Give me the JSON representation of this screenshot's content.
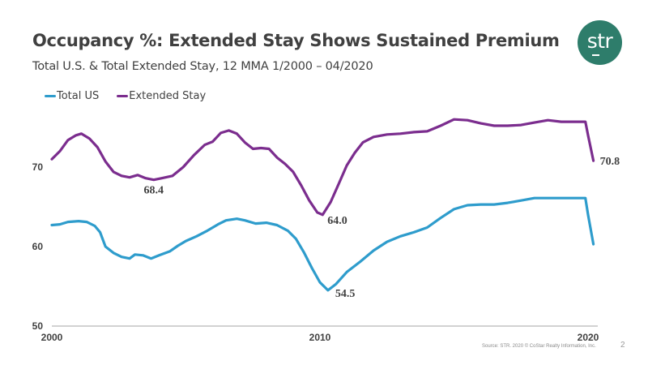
{
  "slide": {
    "title": "Occupancy %: Extended Stay Shows Sustained Premium",
    "subtitle": "Total U.S. & Total Extended Stay, 12 MMA  1/2000  –  04/2020",
    "logo_text": "str",
    "footer": "Source: STR. 2020 © CoStar Realty Information, Inc.",
    "page_number": "2"
  },
  "chart_data": {
    "type": "line",
    "title": "Occupancy %: Extended Stay Shows Sustained Premium",
    "subtitle": "Total U.S. & Total Extended Stay, 12 MMA 1/2000 – 04/2020",
    "xlabel": "",
    "ylabel": "",
    "xlim": [
      2000,
      2020.3
    ],
    "ylim": [
      50,
      78
    ],
    "x_ticks": [
      "2000",
      "2010",
      "2020"
    ],
    "x_tick_values": [
      2000,
      2010,
      2020
    ],
    "y_ticks": [
      "50",
      "60",
      "70"
    ],
    "y_tick_values": [
      50,
      60,
      70
    ],
    "grid": false,
    "legend": "top-left",
    "series": [
      {
        "name": "Total US",
        "color": "#2e9ccc",
        "points": [
          [
            2000.0,
            62.7
          ],
          [
            2000.3,
            62.8
          ],
          [
            2000.6,
            63.1
          ],
          [
            2001.0,
            63.2
          ],
          [
            2001.3,
            63.1
          ],
          [
            2001.6,
            62.6
          ],
          [
            2001.8,
            61.8
          ],
          [
            2002.0,
            60.0
          ],
          [
            2002.3,
            59.2
          ],
          [
            2002.6,
            58.7
          ],
          [
            2002.9,
            58.5
          ],
          [
            2003.1,
            59.0
          ],
          [
            2003.4,
            58.9
          ],
          [
            2003.7,
            58.5
          ],
          [
            2004.0,
            58.9
          ],
          [
            2004.4,
            59.4
          ],
          [
            2004.7,
            60.1
          ],
          [
            2005.0,
            60.7
          ],
          [
            2005.4,
            61.3
          ],
          [
            2005.8,
            62.0
          ],
          [
            2006.2,
            62.8
          ],
          [
            2006.5,
            63.3
          ],
          [
            2006.9,
            63.5
          ],
          [
            2007.2,
            63.3
          ],
          [
            2007.6,
            62.9
          ],
          [
            2008.0,
            63.0
          ],
          [
            2008.4,
            62.7
          ],
          [
            2008.8,
            62.0
          ],
          [
            2009.1,
            61.0
          ],
          [
            2009.4,
            59.3
          ],
          [
            2009.7,
            57.3
          ],
          [
            2010.0,
            55.5
          ],
          [
            2010.3,
            54.5
          ],
          [
            2010.6,
            55.3
          ],
          [
            2011.0,
            56.8
          ],
          [
            2011.5,
            58.1
          ],
          [
            2012.0,
            59.5
          ],
          [
            2012.5,
            60.6
          ],
          [
            2013.0,
            61.3
          ],
          [
            2013.5,
            61.8
          ],
          [
            2014.0,
            62.4
          ],
          [
            2014.5,
            63.6
          ],
          [
            2015.0,
            64.7
          ],
          [
            2015.5,
            65.2
          ],
          [
            2016.0,
            65.3
          ],
          [
            2016.5,
            65.3
          ],
          [
            2017.0,
            65.5
          ],
          [
            2017.5,
            65.8
          ],
          [
            2018.0,
            66.1
          ],
          [
            2018.5,
            66.1
          ],
          [
            2019.0,
            66.1
          ],
          [
            2019.5,
            66.1
          ],
          [
            2019.9,
            66.1
          ],
          [
            2020.0,
            64.0
          ],
          [
            2020.2,
            60.3
          ]
        ]
      },
      {
        "name": "Extended Stay",
        "color": "#7b2d8e",
        "points": [
          [
            2000.0,
            71.0
          ],
          [
            2000.3,
            72.0
          ],
          [
            2000.6,
            73.4
          ],
          [
            2000.9,
            74.0
          ],
          [
            2001.1,
            74.2
          ],
          [
            2001.4,
            73.6
          ],
          [
            2001.7,
            72.5
          ],
          [
            2002.0,
            70.7
          ],
          [
            2002.3,
            69.4
          ],
          [
            2002.6,
            68.9
          ],
          [
            2002.9,
            68.7
          ],
          [
            2003.2,
            69.0
          ],
          [
            2003.5,
            68.6
          ],
          [
            2003.8,
            68.4
          ],
          [
            2004.1,
            68.6
          ],
          [
            2004.5,
            68.9
          ],
          [
            2004.9,
            70.0
          ],
          [
            2005.3,
            71.5
          ],
          [
            2005.7,
            72.8
          ],
          [
            2006.0,
            73.2
          ],
          [
            2006.3,
            74.3
          ],
          [
            2006.6,
            74.6
          ],
          [
            2006.9,
            74.2
          ],
          [
            2007.2,
            73.1
          ],
          [
            2007.5,
            72.3
          ],
          [
            2007.8,
            72.4
          ],
          [
            2008.1,
            72.3
          ],
          [
            2008.4,
            71.2
          ],
          [
            2008.7,
            70.4
          ],
          [
            2009.0,
            69.4
          ],
          [
            2009.3,
            67.7
          ],
          [
            2009.6,
            65.8
          ],
          [
            2009.9,
            64.3
          ],
          [
            2010.1,
            64.0
          ],
          [
            2010.4,
            65.6
          ],
          [
            2010.7,
            67.9
          ],
          [
            2011.0,
            70.2
          ],
          [
            2011.3,
            71.8
          ],
          [
            2011.6,
            73.1
          ],
          [
            2012.0,
            73.8
          ],
          [
            2012.5,
            74.1
          ],
          [
            2013.0,
            74.2
          ],
          [
            2013.5,
            74.4
          ],
          [
            2014.0,
            74.5
          ],
          [
            2014.5,
            75.2
          ],
          [
            2015.0,
            76.0
          ],
          [
            2015.5,
            75.9
          ],
          [
            2016.0,
            75.5
          ],
          [
            2016.5,
            75.2
          ],
          [
            2017.0,
            75.2
          ],
          [
            2017.5,
            75.3
          ],
          [
            2018.0,
            75.6
          ],
          [
            2018.5,
            75.9
          ],
          [
            2019.0,
            75.7
          ],
          [
            2019.5,
            75.7
          ],
          [
            2019.9,
            75.7
          ],
          [
            2020.0,
            74.0
          ],
          [
            2020.2,
            70.8
          ]
        ]
      }
    ],
    "annotations": [
      {
        "series": "Extended Stay",
        "x": 2003.8,
        "y": 68.4,
        "text": "68.4"
      },
      {
        "series": "Extended Stay",
        "x": 2010.1,
        "y": 64.0,
        "text": "64.0"
      },
      {
        "series": "Total US",
        "x": 2010.3,
        "y": 54.5,
        "text": "54.5"
      },
      {
        "series": "Extended Stay",
        "x": 2020.2,
        "y": 70.8,
        "text": "70.8"
      }
    ]
  }
}
